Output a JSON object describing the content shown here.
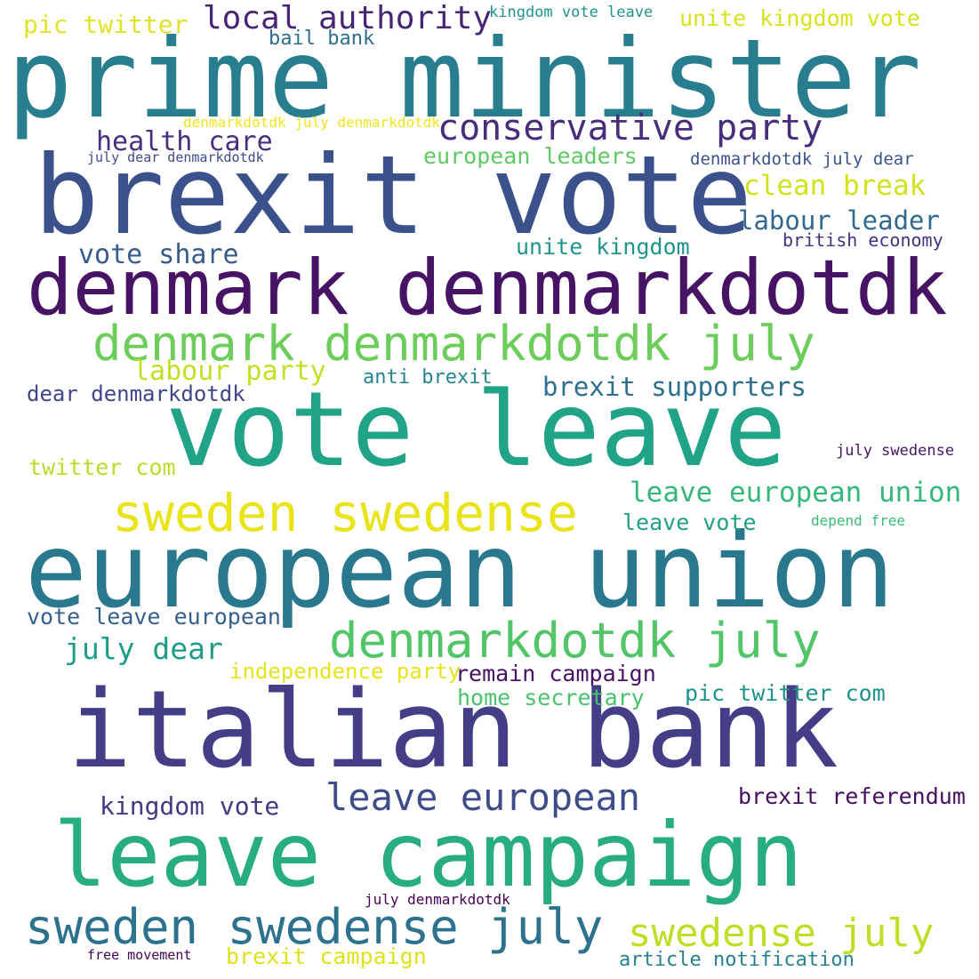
{
  "words": [
    {
      "text": "prime minister",
      "color": "#287d8e"
    },
    {
      "text": "brexit vote",
      "color": "#3b518b"
    },
    {
      "text": "denmark denmarkdotdk",
      "color": "#471365"
    },
    {
      "text": "denmark denmarkdotdk july",
      "color": "#6ccd5a"
    },
    {
      "text": "vote leave",
      "color": "#20a386"
    },
    {
      "text": "european union",
      "color": "#2a788e"
    },
    {
      "text": "italian bank",
      "color": "#433e85"
    },
    {
      "text": "leave campaign",
      "color": "#27ad81"
    },
    {
      "text": "sweden swedense",
      "color": "#e8e419"
    },
    {
      "text": "denmarkdotdk july",
      "color": "#52c569"
    },
    {
      "text": "sweden swedense july",
      "color": "#2c728e"
    },
    {
      "text": "swedense july",
      "color": "#bddf26"
    },
    {
      "text": "leave european",
      "color": "#3e4c8a"
    },
    {
      "text": "conservative party",
      "color": "#472d7b"
    },
    {
      "text": "local authority",
      "color": "#482475"
    },
    {
      "text": "pic twitter",
      "color": "#e1e329"
    },
    {
      "text": "bail bank",
      "color": "#2e6f8e"
    },
    {
      "text": "kingdom vote leave",
      "color": "#21918c"
    },
    {
      "text": "unite kingdom vote",
      "color": "#d8e219"
    },
    {
      "text": "denmarkdotdk july denmarkdotdk",
      "color": "#f1e51d"
    },
    {
      "text": "july dear denmarkdotdk",
      "color": "#3e4a89"
    },
    {
      "text": "health care",
      "color": "#472f7d"
    },
    {
      "text": "european leaders",
      "color": "#5ec962"
    },
    {
      "text": "denmarkdotdk july dear",
      "color": "#3b528b"
    },
    {
      "text": "clean break",
      "color": "#d2e21b"
    },
    {
      "text": "labour leader",
      "color": "#31688e"
    },
    {
      "text": "british economy",
      "color": "#46327e"
    },
    {
      "text": "unite kingdom",
      "color": "#1f958b"
    },
    {
      "text": "vote share",
      "color": "#365c8d"
    },
    {
      "text": "labour party",
      "color": "#c2df23"
    },
    {
      "text": "anti brexit",
      "color": "#25858e"
    },
    {
      "text": "brexit supporters",
      "color": "#2e6e8e"
    },
    {
      "text": "dear denmarkdotdk",
      "color": "#3f4788"
    },
    {
      "text": "twitter com",
      "color": "#b8de29"
    },
    {
      "text": "july swedense",
      "color": "#481668"
    },
    {
      "text": "leave european union",
      "color": "#35b779"
    },
    {
      "text": "leave vote",
      "color": "#1f9e89"
    },
    {
      "text": "depend free",
      "color": "#3bbb75"
    },
    {
      "text": "vote leave european",
      "color": "#355f8d"
    },
    {
      "text": "july dear",
      "color": "#1e9c89"
    },
    {
      "text": "independence party",
      "color": "#e5e419"
    },
    {
      "text": "remain campaign",
      "color": "#471164"
    },
    {
      "text": "home secretary",
      "color": "#4ac16d"
    },
    {
      "text": "pic twitter com",
      "color": "#20928c"
    },
    {
      "text": "kingdom vote",
      "color": "#443983"
    },
    {
      "text": "brexit referendum",
      "color": "#440f60"
    },
    {
      "text": "july denmarkdotdk",
      "color": "#440154"
    },
    {
      "text": "free movement",
      "color": "#450559"
    },
    {
      "text": "brexit campaign",
      "color": "#dde318"
    },
    {
      "text": "article notification",
      "color": "#26828e"
    }
  ]
}
